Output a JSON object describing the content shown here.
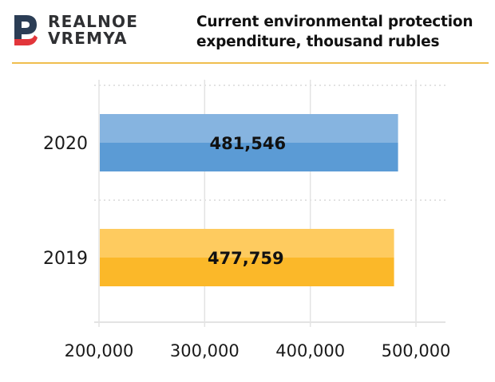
{
  "brand": {
    "name_line1": "REALNOE",
    "name_line2": "VREMYA",
    "logo_icon": "realnoe-vremya-logo-icon",
    "colors": {
      "navy": "#2b3d55",
      "red": "#e2363b",
      "text": "#2f3033"
    }
  },
  "header": {
    "title_line1": "Current environmental protection",
    "title_line2": "expenditure, thousand rubles",
    "divider_color": "#efbe4e"
  },
  "chart_data": {
    "type": "bar",
    "orientation": "horizontal",
    "title": "Current environmental protection expenditure, thousand rubles",
    "xlabel": "",
    "ylabel": "",
    "categories": [
      "2020",
      "2019"
    ],
    "values": [
      481546,
      477759
    ],
    "data_labels": [
      "481,546",
      "477,759"
    ],
    "bar_colors": [
      {
        "top": "#86b4e0",
        "bottom": "#5b9bd5"
      },
      {
        "top": "#fecb5f",
        "bottom": "#fbb829"
      }
    ],
    "xlim": [
      200000,
      530000
    ],
    "xticks": [
      200000,
      300000,
      400000,
      500000
    ],
    "xtick_labels": [
      "200,000",
      "300,000",
      "400,000",
      "500,000"
    ],
    "grid": true,
    "legend": "none"
  }
}
